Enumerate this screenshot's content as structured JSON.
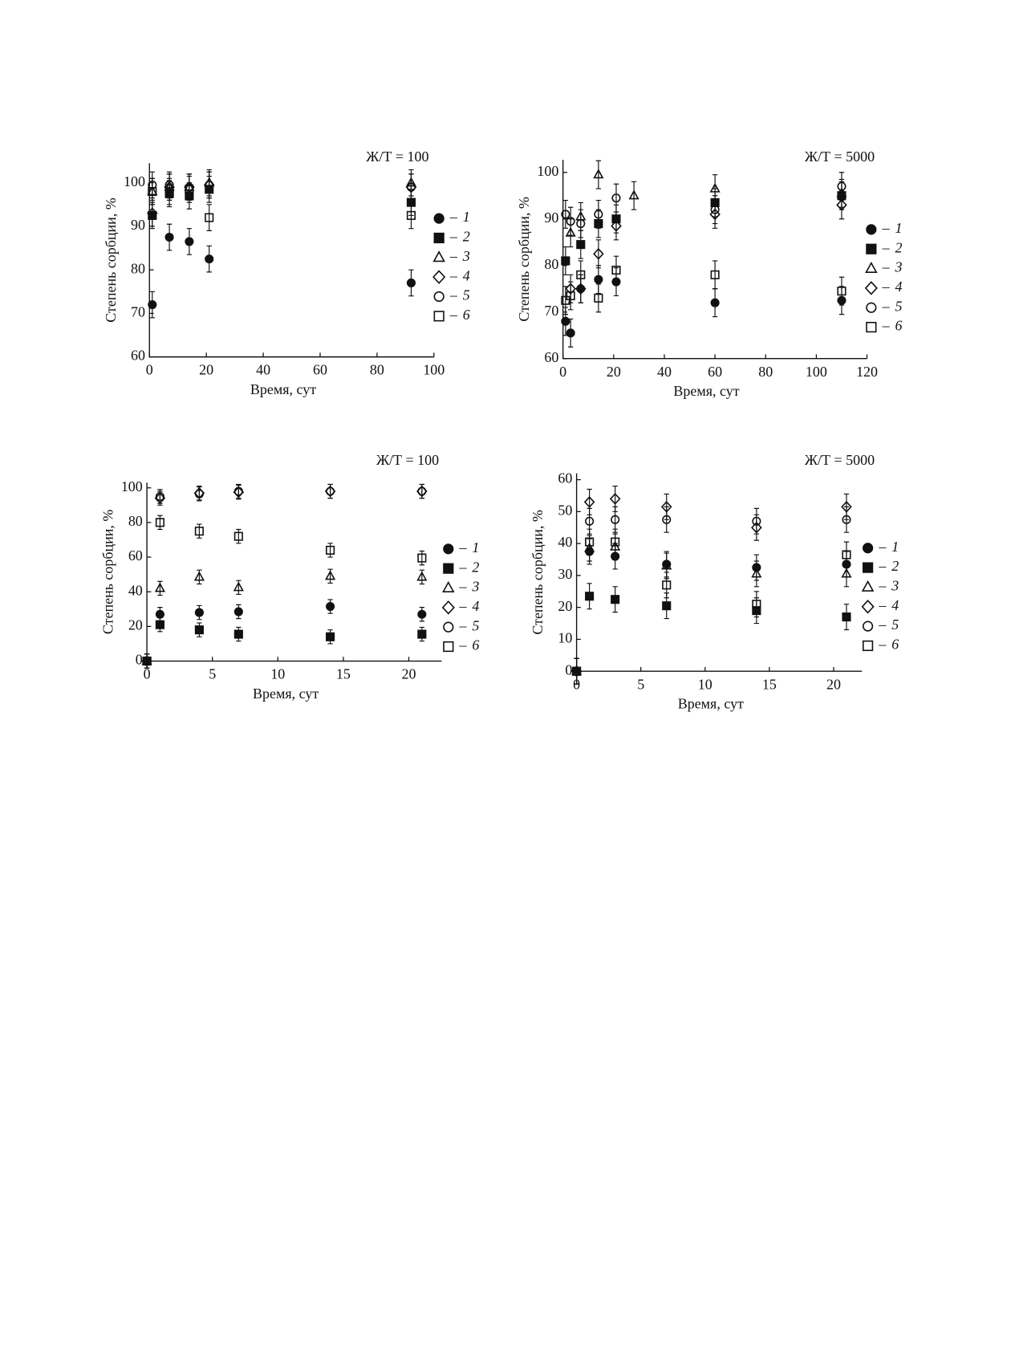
{
  "chart_data": [
    {
      "type": "scatter",
      "title": "Ж/Т = 100",
      "x_label": "Время, сут",
      "y_label": "Степень сорбции, %",
      "xlim": [
        0,
        100
      ],
      "ylim": [
        60,
        104.5
      ],
      "xticks": [
        0,
        20,
        40,
        60,
        80,
        100
      ],
      "yticks": [
        60,
        70,
        80,
        90,
        100
      ],
      "series": [
        {
          "name": "1",
          "marker": "circle",
          "filled": true,
          "color": "#111",
          "error": 3,
          "x": [
            1,
            7,
            14,
            21,
            92
          ],
          "values": [
            72,
            87.5,
            86.5,
            82.5,
            77
          ]
        },
        {
          "name": "2",
          "marker": "square",
          "filled": true,
          "color": "#111",
          "error": 3,
          "x": [
            1,
            7,
            14,
            21,
            92
          ],
          "values": [
            92.5,
            97.5,
            97,
            98.5,
            95.5
          ]
        },
        {
          "name": "3",
          "marker": "triangle",
          "filled": false,
          "color": "#111",
          "error": 3,
          "x": [
            1,
            7,
            14,
            21,
            92
          ],
          "values": [
            98,
            99,
            99,
            100,
            100
          ]
        },
        {
          "name": "4",
          "marker": "diamond",
          "filled": false,
          "color": "#111",
          "error": 3,
          "x": [
            1,
            7,
            14,
            21,
            92
          ],
          "values": [
            93,
            99,
            99,
            99.5,
            99
          ]
        },
        {
          "name": "5",
          "marker": "circle",
          "filled": false,
          "color": "#111",
          "error": 3,
          "x": [
            1,
            7,
            14,
            21,
            92
          ],
          "values": [
            99.5,
            99.5,
            99,
            99.5,
            99
          ]
        },
        {
          "name": "6",
          "marker": "square",
          "filled": false,
          "color": "#111",
          "error": 3,
          "x": [
            1,
            7,
            14,
            21,
            92
          ],
          "values": [
            98,
            98,
            98.5,
            92,
            92.5
          ]
        }
      ]
    },
    {
      "type": "scatter",
      "title": "Ж/Т = 5000",
      "x_label": "Время, сут",
      "y_label": "Степень сорбции, %",
      "xlim": [
        0,
        120
      ],
      "ylim": [
        60,
        102.7
      ],
      "xticks": [
        0,
        20,
        40,
        60,
        80,
        100,
        120
      ],
      "yticks": [
        60,
        70,
        80,
        90,
        100
      ],
      "series": [
        {
          "name": "1",
          "marker": "circle",
          "filled": true,
          "color": "#111",
          "error": 3,
          "x": [
            1,
            3,
            7,
            14,
            21,
            60,
            110
          ],
          "values": [
            68,
            65.5,
            75,
            77,
            76.5,
            72,
            72.5
          ]
        },
        {
          "name": "2",
          "marker": "square",
          "filled": true,
          "color": "#111",
          "error": 3,
          "x": [
            1,
            7,
            14,
            21,
            60,
            110
          ],
          "values": [
            81,
            84.5,
            89,
            90,
            93.5,
            95
          ]
        },
        {
          "name": "3",
          "marker": "triangle",
          "filled": false,
          "color": "#111",
          "error": 3,
          "x": [
            3,
            7,
            14,
            28,
            60,
            110
          ],
          "values": [
            87,
            90.5,
            99.5,
            95,
            96.5,
            95.5
          ]
        },
        {
          "name": "4",
          "marker": "diamond",
          "filled": false,
          "color": "#111",
          "error": 3,
          "x": [
            3,
            7,
            14,
            21,
            60,
            110
          ],
          "values": [
            75,
            75,
            82.5,
            88.5,
            91,
            93
          ]
        },
        {
          "name": "5",
          "marker": "circle",
          "filled": false,
          "color": "#111",
          "error": 3,
          "x": [
            1,
            3,
            7,
            14,
            21,
            60,
            110
          ],
          "values": [
            91,
            89.5,
            89,
            91,
            94.5,
            92,
            97
          ]
        },
        {
          "name": "6",
          "marker": "square",
          "filled": false,
          "color": "#111",
          "error": 3,
          "x": [
            1,
            3,
            7,
            14,
            21,
            60,
            110
          ],
          "values": [
            72.5,
            73.5,
            78,
            73,
            79,
            78,
            74.5
          ]
        }
      ]
    },
    {
      "type": "scatter",
      "title": "Ж/Т = 100",
      "x_label": "Время, сут",
      "y_label": "Степень сорбции, %",
      "xlim": [
        0,
        22.5
      ],
      "ylim": [
        0,
        103
      ],
      "xticks": [
        0,
        5,
        10,
        15,
        20
      ],
      "yticks": [
        0,
        20,
        40,
        60,
        80,
        100
      ],
      "series": [
        {
          "name": "1",
          "marker": "circle",
          "filled": true,
          "color": "#111",
          "error": 4,
          "x": [
            0,
            1,
            4,
            7,
            14,
            21
          ],
          "values": [
            0,
            27,
            28,
            28.5,
            31.5,
            27
          ]
        },
        {
          "name": "2",
          "marker": "square",
          "filled": true,
          "color": "#111",
          "error": 4,
          "x": [
            0,
            1,
            4,
            7,
            14,
            21
          ],
          "values": [
            0,
            21,
            18,
            15.5,
            14,
            15.5
          ]
        },
        {
          "name": "3",
          "marker": "triangle",
          "filled": false,
          "color": "#111",
          "error": 4,
          "x": [
            0,
            1,
            4,
            7,
            14,
            21
          ],
          "values": [
            0,
            42,
            48.5,
            42.5,
            49,
            48.5
          ]
        },
        {
          "name": "4",
          "marker": "diamond",
          "filled": false,
          "color": "#111",
          "error": 4,
          "x": [
            0,
            1,
            4,
            7,
            14,
            21
          ],
          "values": [
            0,
            94,
            97,
            97.5,
            98,
            98
          ]
        },
        {
          "name": "5",
          "marker": "circle",
          "filled": false,
          "color": "#111",
          "error": 4,
          "x": [
            0,
            1,
            4,
            7,
            14,
            21
          ],
          "values": [
            0,
            95,
            96.5,
            98,
            98,
            98
          ]
        },
        {
          "name": "6",
          "marker": "square",
          "filled": false,
          "color": "#111",
          "error": 4,
          "x": [
            0,
            1,
            4,
            7,
            14,
            21
          ],
          "values": [
            0,
            80,
            75,
            72,
            64,
            59.5
          ]
        }
      ]
    },
    {
      "type": "scatter",
      "title": "Ж/Т = 5000",
      "x_label": "Время, сут",
      "y_label": "Степень сорбции, %",
      "xlim": [
        0,
        22.2
      ],
      "ylim": [
        0,
        62
      ],
      "xticks": [
        0,
        5,
        10,
        15,
        20
      ],
      "yticks": [
        0,
        10,
        20,
        30,
        40,
        50,
        60
      ],
      "series": [
        {
          "name": "1",
          "marker": "circle",
          "filled": true,
          "color": "#111",
          "error": 4,
          "x": [
            0,
            1,
            3,
            7,
            14,
            21
          ],
          "values": [
            0,
            37.5,
            36,
            33.5,
            32.5,
            33.5
          ]
        },
        {
          "name": "2",
          "marker": "square",
          "filled": true,
          "color": "#111",
          "error": 4,
          "x": [
            0,
            1,
            3,
            7,
            14,
            21
          ],
          "values": [
            0,
            23.5,
            22.5,
            20.5,
            19,
            17
          ]
        },
        {
          "name": "3",
          "marker": "triangle",
          "filled": false,
          "color": "#111",
          "error": 4,
          "x": [
            0,
            1,
            3,
            7,
            14,
            21
          ],
          "values": [
            0,
            38.5,
            39,
            33,
            30.5,
            30.5
          ]
        },
        {
          "name": "4",
          "marker": "diamond",
          "filled": false,
          "color": "#111",
          "error": 4,
          "x": [
            0,
            1,
            3,
            7,
            14,
            21
          ],
          "values": [
            0,
            53,
            54,
            51.5,
            45,
            51.5
          ]
        },
        {
          "name": "5",
          "marker": "circle",
          "filled": false,
          "color": "#111",
          "error": 4,
          "x": [
            0,
            1,
            3,
            7,
            14,
            21
          ],
          "values": [
            0,
            47,
            47.5,
            47.5,
            47,
            47.5
          ]
        },
        {
          "name": "6",
          "marker": "square",
          "filled": false,
          "color": "#111",
          "error": 4,
          "x": [
            0,
            1,
            3,
            7,
            14,
            21
          ],
          "values": [
            0,
            40.5,
            40.5,
            27,
            21,
            36.5
          ]
        }
      ]
    }
  ]
}
